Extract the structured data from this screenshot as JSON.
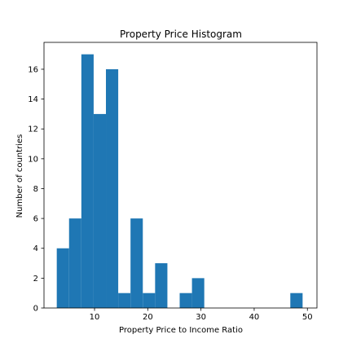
{
  "chart_data": {
    "type": "histogram",
    "title": "Property Price Histogram",
    "xlabel": "Property Price to Income Ratio",
    "ylabel": "Number of countries",
    "xlim": [
      0.5,
      51.8
    ],
    "ylim": [
      0,
      17.8
    ],
    "xticks": [
      10,
      20,
      30,
      40,
      50
    ],
    "yticks": [
      0,
      2,
      4,
      6,
      8,
      10,
      12,
      14,
      16
    ],
    "bin_start": 2.9,
    "bin_width": 2.31,
    "counts": [
      4,
      6,
      17,
      13,
      16,
      1,
      6,
      1,
      3,
      0,
      1,
      2,
      0,
      0,
      0,
      0,
      0,
      0,
      0,
      1
    ],
    "bar_color": "#1f77b4",
    "grid": false
  }
}
